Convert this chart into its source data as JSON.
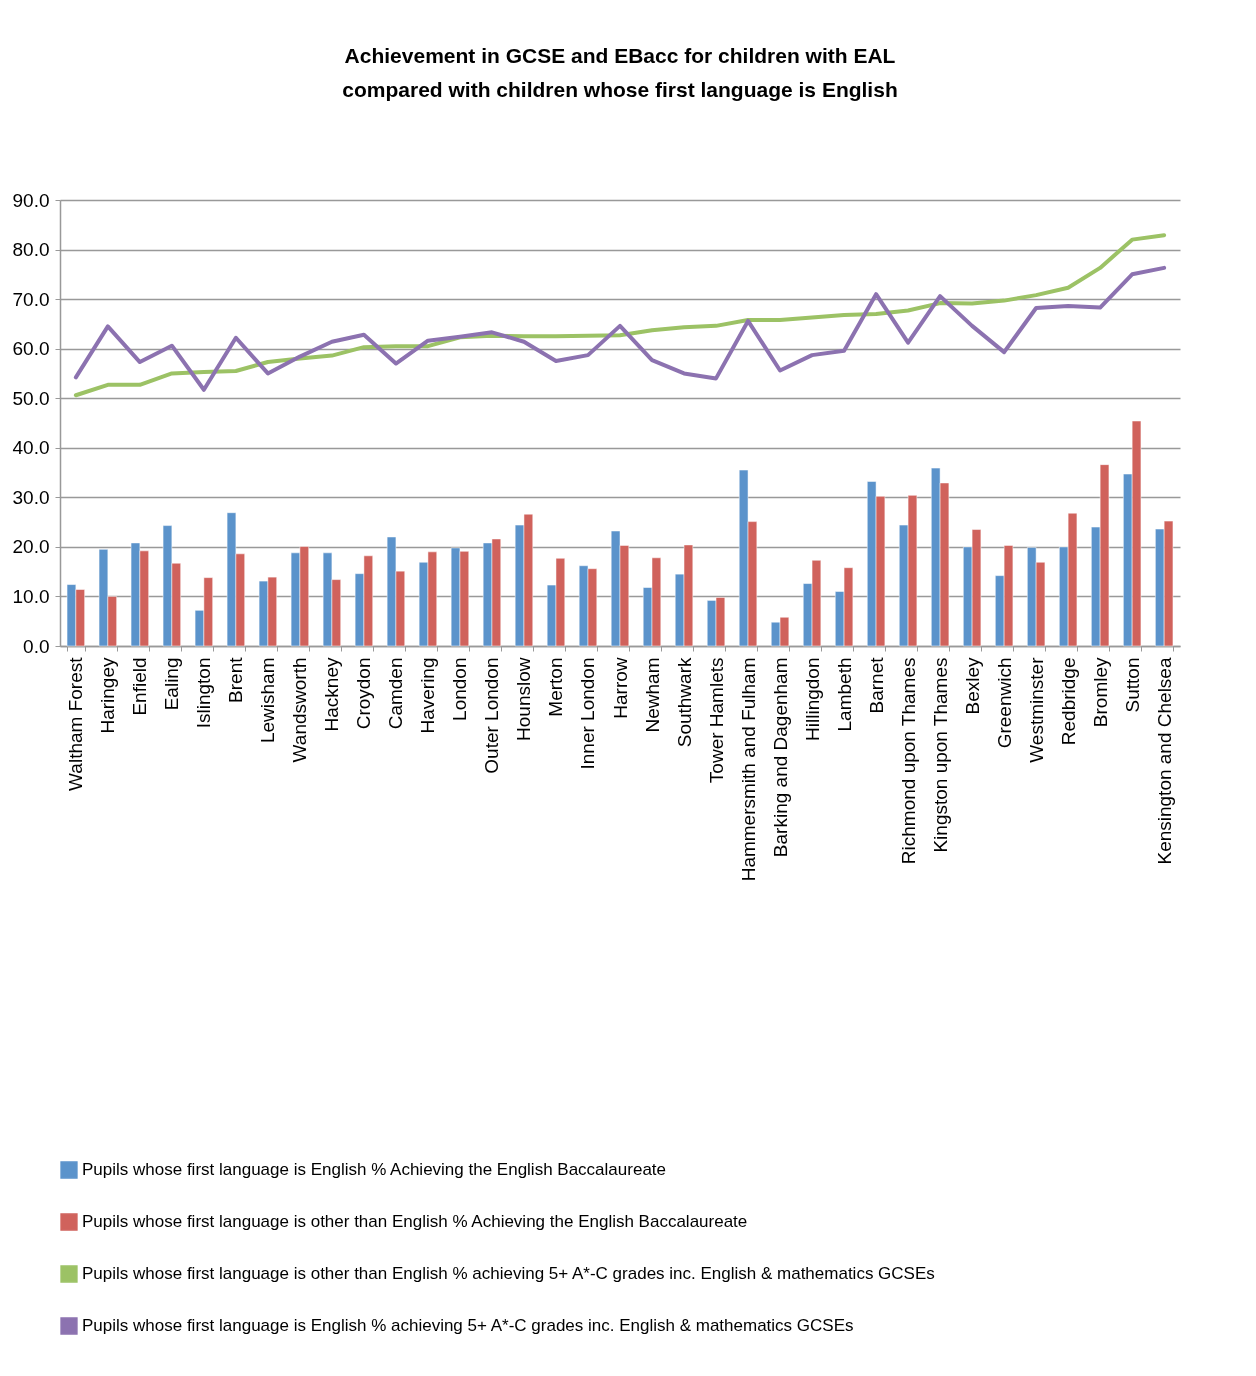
{
  "chart_data": {
    "type": "bar",
    "title": "Achievement in GCSE and EBacc for children with EAL compared with children whose first language is English",
    "categories": [
      "Waltham Forest",
      "Haringey",
      "Enfield",
      "Ealing",
      "Islington",
      "Brent",
      "Lewisham",
      "Wandsworth",
      "Hackney",
      "Croydon",
      "Camden",
      "Havering",
      "London",
      "Outer London",
      "Hounslow",
      "Merton",
      "Inner London",
      "Harrow",
      "Newham",
      "Southwark",
      "Tower Hamlets",
      "Hammersmith and Fulham",
      "Barking and Dagenham",
      "Hillingdon",
      "Lambeth",
      "Barnet",
      "Richmond upon Thames",
      "Kingston upon Thames",
      "Bexley",
      "Greenwich",
      "Westminster",
      "Redbridge",
      "Bromley",
      "Sutton",
      "Kensington and Chelsea"
    ],
    "series": [
      {
        "name": "Pupils whose first language is English % Achieving the English Baccalaureate",
        "color": "#5b93cb",
        "values": [
          12.4,
          19.5,
          20.8,
          24.3,
          7.2,
          26.9,
          13.1,
          18.8,
          18.8,
          14.6,
          22.0,
          16.9,
          19.8,
          20.8,
          24.4,
          12.3,
          16.2,
          23.2,
          11.8,
          14.5,
          9.2,
          35.5,
          4.8,
          12.6,
          11.0,
          33.2,
          24.4,
          35.9,
          20.0,
          14.2,
          19.9,
          20.0,
          24.0,
          34.7,
          23.6
        ]
      },
      {
        "name": "Pupils whose first language is other than English % Achieving the English Baccalaureate",
        "color": "#d0625c",
        "values": [
          11.4,
          10.0,
          19.2,
          16.7,
          13.8,
          18.6,
          13.9,
          20.1,
          13.4,
          18.2,
          15.1,
          19.0,
          19.1,
          21.6,
          26.6,
          17.7,
          15.6,
          20.3,
          17.8,
          20.4,
          9.8,
          25.1,
          5.8,
          17.3,
          15.8,
          30.2,
          30.4,
          32.9,
          23.5,
          20.3,
          16.9,
          26.8,
          36.6,
          45.4,
          25.2
        ]
      },
      {
        "name": "Pupils whose first language is other than English % achieving 5+ A*-C grades inc. English & mathematics GCSEs",
        "type": "line",
        "color": "#9cc265",
        "values": [
          50.6,
          52.7,
          52.7,
          55.0,
          55.3,
          55.5,
          57.3,
          58.0,
          58.6,
          60.3,
          60.5,
          60.5,
          62.3,
          62.6,
          62.5,
          62.5,
          62.6,
          62.7,
          63.7,
          64.3,
          64.6,
          65.8,
          65.8,
          66.3,
          66.8,
          67.0,
          67.7,
          69.2,
          69.1,
          69.7,
          70.8,
          72.3,
          76.3,
          82.0,
          82.9
        ]
      },
      {
        "name": "Pupils whose first language is English % achieving 5+ A*-C grades inc. English & mathematics GCSEs",
        "type": "line",
        "color": "#8c72b0",
        "values": [
          54.2,
          64.5,
          57.3,
          60.6,
          51.7,
          62.2,
          55.0,
          58.4,
          61.4,
          62.8,
          57.0,
          61.6,
          62.4,
          63.3,
          61.4,
          57.5,
          58.7,
          64.6,
          57.7,
          55.0,
          54.0,
          65.6,
          55.6,
          58.7,
          59.6,
          71.0,
          61.2,
          70.6,
          64.6,
          59.3,
          68.2,
          68.6,
          68.3,
          75.0,
          76.3
        ]
      }
    ],
    "ylim": [
      0,
      90
    ],
    "yticks": [
      {
        "value": 0,
        "label": "0.0"
      },
      {
        "value": 10,
        "label": "10.0"
      },
      {
        "value": 20,
        "label": "20.0"
      },
      {
        "value": 30,
        "label": "30.0"
      },
      {
        "value": 40,
        "label": "40.0"
      },
      {
        "value": 50,
        "label": "50.0"
      },
      {
        "value": 60,
        "label": "60.0"
      },
      {
        "value": 70,
        "label": "70.0"
      },
      {
        "value": 80,
        "label": "80.0"
      },
      {
        "value": 90,
        "label": "90.0"
      }
    ],
    "grid": "y",
    "legend": "bottom",
    "marker": "none",
    "line_style": "solid"
  }
}
